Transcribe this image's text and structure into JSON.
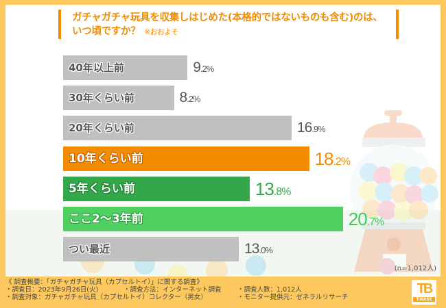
{
  "title": {
    "line1": "ガチャガチャ玩具を収集しはじめた(本格的ではないものも含む)のは、",
    "line2": "いつ頃ですか？",
    "note": "※おおよそ"
  },
  "colors": {
    "frame": "#fdc95e",
    "accent": "#f28c00",
    "gray_bar": "#c0c0c0",
    "orange_bar": "#f28c00",
    "dark_green_bar": "#33a84a",
    "light_green_bar": "#50d060"
  },
  "chart_data": {
    "type": "bar",
    "orientation": "horizontal",
    "title": "ガチャガチャ玩具を収集しはじめた(本格的ではないものも含む)のは、いつ頃ですか？ ※おおよそ",
    "xlabel": "",
    "ylabel": "",
    "unit": "%",
    "categories": [
      "40年以上前",
      "30年くらい前",
      "20年くらい前",
      "10年くらい前",
      "5年くらい前",
      "ここ2〜3年前",
      "つい最近"
    ],
    "values": [
      9.2,
      8.2,
      16.9,
      18.2,
      13.8,
      20.7,
      13.0
    ],
    "value_labels": [
      {
        "int": "9",
        "dec": ".2%"
      },
      {
        "int": "8",
        "dec": ".2%"
      },
      {
        "int": "16",
        "dec": ".9%"
      },
      {
        "int": "18",
        "dec": ".2%"
      },
      {
        "int": "13",
        "dec": ".8%"
      },
      {
        "int": "20",
        "dec": ".7%"
      },
      {
        "int": "13",
        "dec": ".0%"
      }
    ],
    "bar_colors": [
      "#c0c0c0",
      "#c0c0c0",
      "#c0c0c0",
      "#f28c00",
      "#33a84a",
      "#50d060",
      "#c0c0c0"
    ],
    "value_colors": [
      "#555555",
      "#555555",
      "#555555",
      "#f08c00",
      "#33a84a",
      "#44c85a",
      "#555555"
    ],
    "highlight": [
      "",
      "",
      "",
      "orange",
      "dgreen",
      "lgreen",
      ""
    ],
    "grid": false,
    "legend": "none",
    "sample_size": "(n=1,012人)"
  },
  "footer": {
    "summary": "《 調査概要：「ガチャガチャ玩具（カプセルトイ）」に関する調査》",
    "date": "・調査日：2023年9月26日(火)",
    "method": "・調査方法：インターネット調査",
    "count": "・調査人数：1,012人",
    "target": "・調査対象：ガチャガチャ玩具（カプセルトイ）コレクター（男女）",
    "provider": "・モニター提供元：ゼネラルリサーチ"
  },
  "logo": {
    "mark": "TB",
    "text": "T-BASE"
  }
}
